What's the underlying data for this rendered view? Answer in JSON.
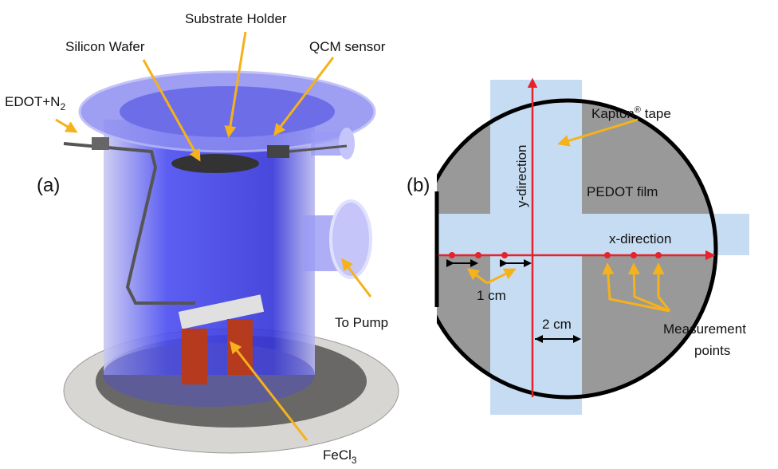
{
  "panel_a": {
    "label": "(a)",
    "substrate_holder": "Substrate Holder",
    "silicon_wafer": "Silicon Wafer",
    "qcm_sensor": "QCM sensor",
    "edot": {
      "main": "EDOT+N",
      "sub": "2"
    },
    "to_pump": "To Pump",
    "fecl": {
      "main": "FeCl",
      "sub": "3"
    }
  },
  "panel_b": {
    "label": "(b)",
    "kapton": {
      "main": "Kapton",
      "sup": "®",
      "rest": " tape"
    },
    "y_direction": "y-direction",
    "pedot_film": "PEDOT film",
    "x_direction": "x-direction",
    "one_cm": "1 cm",
    "two_cm": "2 cm",
    "measurement_points": [
      "Measurement",
      "points"
    ]
  }
}
